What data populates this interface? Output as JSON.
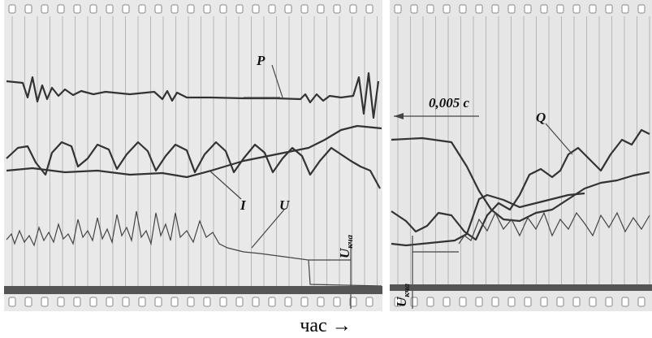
{
  "labels": {
    "P": "P",
    "Q": "Q",
    "I": "I",
    "U": "U",
    "time_scale": "0,005 c",
    "u_left": {
      "main": "U",
      "sub": "кча"
    },
    "u_right": {
      "main": "U",
      "sub": "кча"
    }
  },
  "caption": "час →"
}
